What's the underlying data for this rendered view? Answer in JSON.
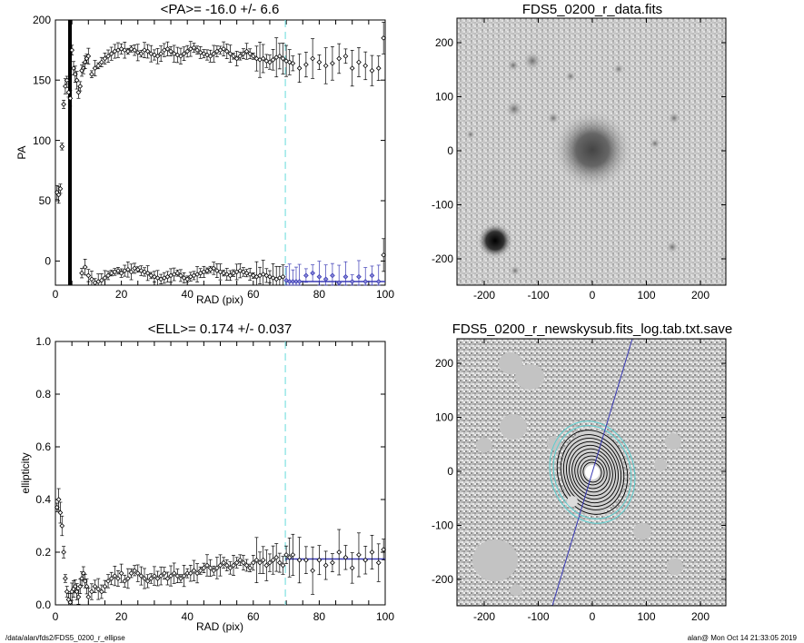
{
  "footer": {
    "left": "/data/alan/fds2/FDS5_0200_r_ellipse",
    "right": "alan@  Mon Oct 14 21:33:05 2019"
  },
  "colors": {
    "marker_dark": "#000000",
    "fit_line": "#3a3ab5",
    "cutoff_line": "#7fe0e0",
    "contour_cyan": "#5ccfcf"
  },
  "panels": {
    "pa": {
      "title": "<PA>= -16.0 +/-   6.6",
      "xlabel": "RAD (pix)",
      "ylabel": "PA",
      "xticks": [
        "0",
        "20",
        "40",
        "60",
        "80",
        "100"
      ],
      "yticks": [
        "0",
        "50",
        "100",
        "150",
        "200"
      ]
    },
    "ell": {
      "title": "<ELL>= 0.174 +/-  0.037",
      "xlabel": "RAD (pix)",
      "ylabel": "ellipticity",
      "xticks": [
        "0",
        "20",
        "40",
        "60",
        "80",
        "100"
      ],
      "yticks": [
        "0.0",
        "0.2",
        "0.4",
        "0.6",
        "0.8",
        "1.0"
      ]
    },
    "img1": {
      "title": "FDS5_0200_r_data.fits",
      "xticks": [
        "-200",
        "-100",
        "0",
        "100",
        "200"
      ],
      "yticks": [
        "-200",
        "-100",
        "0",
        "100",
        "200"
      ]
    },
    "img2": {
      "title": "FDS5_0200_r_newskysub.fits_log.tab.txt.save",
      "xticks": [
        "-200",
        "-100",
        "0",
        "100",
        "200"
      ],
      "yticks": [
        "-200",
        "-100",
        "0",
        "100",
        "200"
      ]
    }
  },
  "chart_data": [
    {
      "type": "scatter",
      "xlabel": "RAD (pix)",
      "ylabel": "PA",
      "xlim": [
        0,
        100
      ],
      "ylim": [
        -20,
        200
      ],
      "reference_line": {
        "x": 70
      },
      "mean": -16.0,
      "err": 6.6,
      "fit_line": {
        "y": -16.0,
        "x": [
          70,
          100
        ]
      },
      "series": [
        {
          "x": [
            0.5,
            1,
            1.5,
            2,
            2.5,
            3,
            3.5,
            4,
            4.5,
            5,
            5.5,
            6,
            6.5,
            7,
            7.5,
            8,
            8.5,
            9,
            9.5,
            10,
            11,
            12,
            13,
            14,
            15,
            16,
            17,
            18,
            19,
            20,
            21,
            22,
            23,
            24,
            25,
            26,
            27,
            28,
            29,
            30,
            31,
            32,
            33,
            34,
            35,
            36,
            37,
            38,
            39,
            40,
            41,
            42,
            43,
            44,
            45,
            46,
            47,
            48,
            49,
            50,
            51,
            52,
            53,
            54,
            55,
            56,
            57,
            58,
            59,
            60,
            61,
            62,
            63,
            64,
            65,
            66,
            67,
            68,
            69,
            70,
            71,
            72,
            74,
            76,
            78,
            80,
            82,
            84,
            86,
            88,
            90,
            92,
            94,
            96,
            98,
            99.5
          ],
          "y": [
            57,
            55,
            60,
            95,
            130,
            145,
            150,
            140,
            135,
            175,
            160,
            155,
            150,
            140,
            145,
            158,
            160,
            165,
            168,
            170,
            155,
            160,
            162,
            165,
            168,
            170,
            172,
            174,
            175,
            176,
            175,
            174,
            176,
            175,
            173,
            172,
            175,
            174,
            172,
            171,
            170,
            172,
            175,
            176,
            174,
            172,
            171,
            170,
            172,
            174,
            176,
            177,
            175,
            173,
            172,
            171,
            170,
            172,
            174,
            175,
            176,
            174,
            172,
            170,
            168,
            170,
            172,
            174,
            172,
            170,
            168,
            167,
            168,
            166,
            165,
            167,
            169,
            170,
            168,
            166,
            165,
            164,
            160,
            163,
            168,
            165,
            162,
            164,
            168,
            170,
            160,
            165,
            162,
            158,
            160,
            185
          ]
        },
        {
          "x": [
            8,
            9,
            10,
            11,
            12,
            13,
            14,
            15,
            16,
            17,
            18,
            19,
            20,
            21,
            22,
            23,
            24,
            25,
            26,
            27,
            28,
            29,
            30,
            31,
            32,
            33,
            34,
            35,
            36,
            37,
            38,
            39,
            40,
            41,
            42,
            43,
            44,
            45,
            46,
            47,
            48,
            49,
            50,
            51,
            52,
            53,
            54,
            55,
            56,
            57,
            58,
            59,
            60,
            61,
            62,
            63,
            64,
            65,
            66,
            67,
            68,
            69,
            70,
            71,
            72,
            73,
            74,
            76,
            78,
            80,
            82,
            84,
            86,
            88,
            90,
            92,
            94,
            96,
            98,
            99.5
          ],
          "y": [
            -10,
            -5,
            -12,
            -15,
            -18,
            -17,
            -16,
            -14,
            -12,
            -10,
            -9,
            -8,
            -10,
            -8,
            -7,
            -9,
            -6,
            -7,
            -8,
            -9,
            -10,
            -12,
            -13,
            -14,
            -15,
            -14,
            -13,
            -12,
            -11,
            -10,
            -12,
            -14,
            -15,
            -13,
            -12,
            -11,
            -10,
            -9,
            -8,
            -7,
            -6,
            -8,
            -9,
            -10,
            -11,
            -12,
            -10,
            -9,
            -8,
            -9,
            -10,
            -11,
            -12,
            -13,
            -12,
            -11,
            -12,
            -13,
            -14,
            -15,
            -14,
            -13,
            -16,
            -17,
            -17,
            -17,
            -17,
            -12,
            -10,
            -13,
            -15,
            -12,
            -18,
            -13,
            -17,
            -13,
            -17,
            -12,
            -17,
            5
          ]
        }
      ]
    },
    {
      "type": "scatter",
      "xlabel": "RAD (pix)",
      "ylabel": "ellipticity",
      "xlim": [
        0,
        100
      ],
      "ylim": [
        0.0,
        1.0
      ],
      "reference_line": {
        "x": 70
      },
      "mean": 0.174,
      "err": 0.037,
      "fit_line": {
        "y": 0.174,
        "x": [
          70,
          100
        ]
      },
      "x": [
        0.5,
        1,
        1.5,
        2,
        2.5,
        3,
        3.5,
        4,
        4.5,
        5,
        5.5,
        6,
        6.5,
        7,
        7.5,
        8,
        8.5,
        9,
        9.5,
        10,
        11,
        12,
        13,
        14,
        15,
        16,
        17,
        18,
        19,
        20,
        21,
        22,
        23,
        24,
        25,
        26,
        27,
        28,
        29,
        30,
        31,
        32,
        33,
        34,
        35,
        36,
        37,
        38,
        39,
        40,
        41,
        42,
        43,
        44,
        45,
        46,
        47,
        48,
        49,
        50,
        51,
        52,
        53,
        54,
        55,
        56,
        57,
        58,
        59,
        60,
        61,
        62,
        63,
        64,
        65,
        66,
        67,
        68,
        69,
        70,
        71,
        72,
        74,
        76,
        78,
        80,
        82,
        84,
        86,
        88,
        90,
        92,
        94,
        96,
        98,
        99.5
      ],
      "y": [
        0.37,
        0.4,
        0.35,
        0.3,
        0.2,
        0.1,
        0.05,
        0.02,
        0.01,
        0.05,
        0.06,
        0.07,
        0.05,
        0.03,
        0.07,
        0.1,
        0.12,
        0.09,
        0.07,
        0.03,
        0.05,
        0.07,
        0.06,
        0.05,
        0.07,
        0.09,
        0.1,
        0.11,
        0.1,
        0.12,
        0.09,
        0.1,
        0.12,
        0.13,
        0.12,
        0.11,
        0.1,
        0.09,
        0.1,
        0.11,
        0.1,
        0.11,
        0.12,
        0.1,
        0.11,
        0.12,
        0.11,
        0.1,
        0.11,
        0.12,
        0.12,
        0.13,
        0.12,
        0.13,
        0.14,
        0.15,
        0.14,
        0.13,
        0.14,
        0.15,
        0.16,
        0.15,
        0.14,
        0.15,
        0.16,
        0.17,
        0.16,
        0.15,
        0.14,
        0.16,
        0.17,
        0.16,
        0.17,
        0.15,
        0.16,
        0.17,
        0.18,
        0.16,
        0.15,
        0.19,
        0.18,
        0.19,
        0.17,
        0.17,
        0.13,
        0.17,
        0.15,
        0.16,
        0.2,
        0.18,
        0.14,
        0.19,
        0.17,
        0.2,
        0.16,
        0.21
      ]
    }
  ]
}
